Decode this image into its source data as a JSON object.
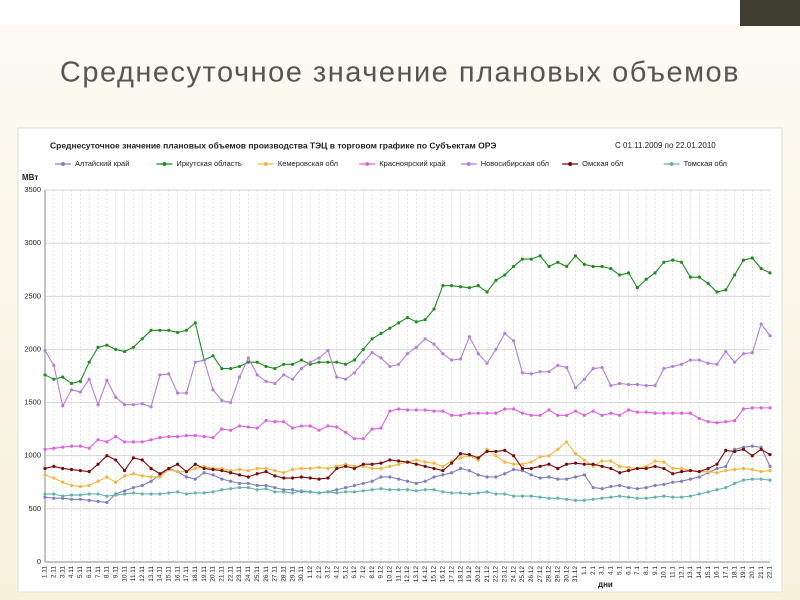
{
  "slide_title": "Среднесуточное значение плановых объемов",
  "chart_data": {
    "type": "line",
    "title": "Среднесуточное значение плановых объемов производства ТЭЦ в торговом графике по Субъектам ОРЭ",
    "subtitle": "С 01.11.2009 по 22.01.2010",
    "y_label": "МВт",
    "x_label": "дни",
    "ylim": [
      0,
      3500
    ],
    "yticks": [
      0,
      500,
      1000,
      1500,
      2000,
      2500,
      3000,
      3500
    ],
    "grid": true,
    "legend": "top",
    "categories": [
      "1.11",
      "2.11",
      "3.11",
      "4.11",
      "5.11",
      "6.11",
      "7.11",
      "8.11",
      "9.11",
      "10.11",
      "11.11",
      "12.11",
      "13.11",
      "14.11",
      "15.11",
      "16.11",
      "17.11",
      "18.11",
      "19.11",
      "20.11",
      "21.11",
      "22.11",
      "23.11",
      "24.11",
      "25.11",
      "26.11",
      "27.11",
      "28.11",
      "29.11",
      "30.11",
      "1.12",
      "2.12",
      "3.12",
      "4.12",
      "5.12",
      "6.12",
      "7.12",
      "8.12",
      "9.12",
      "10.12",
      "11.12",
      "12.12",
      "13.12",
      "14.12",
      "15.12",
      "16.12",
      "17.12",
      "18.12",
      "19.12",
      "20.12",
      "21.12",
      "22.12",
      "23.12",
      "24.12",
      "25.12",
      "26.12",
      "27.12",
      "28.12",
      "29.12",
      "30.12",
      "31.12",
      "1.1",
      "2.1",
      "3.1",
      "4.1",
      "5.1",
      "6.1",
      "7.1",
      "8.1",
      "9.1",
      "10.1",
      "11.1",
      "12.1",
      "13.1",
      "14.1",
      "15.1",
      "16.1",
      "17.1",
      "18.1",
      "19.1",
      "20.1",
      "21.1",
      "22.1"
    ],
    "series": [
      {
        "name": "Алтайский край",
        "color": "#7f7fc4",
        "values": [
          610,
          600,
          600,
          590,
          590,
          580,
          570,
          560,
          640,
          670,
          700,
          720,
          760,
          820,
          880,
          850,
          800,
          780,
          840,
          820,
          780,
          760,
          740,
          740,
          720,
          720,
          700,
          680,
          680,
          660,
          660,
          650,
          660,
          680,
          700,
          720,
          740,
          760,
          800,
          800,
          780,
          760,
          740,
          760,
          800,
          820,
          840,
          880,
          860,
          820,
          800,
          800,
          830,
          870,
          860,
          820,
          790,
          800,
          780,
          780,
          800,
          820,
          700,
          690,
          710,
          720,
          700,
          690,
          700,
          720,
          730,
          750,
          760,
          780,
          800,
          840,
          880,
          900,
          1060,
          1080,
          1090,
          1080,
          900
        ]
      },
      {
        "name": "Иркутская область",
        "color": "#1e8c1e",
        "values": [
          1760,
          1720,
          1740,
          1680,
          1700,
          1880,
          2020,
          2040,
          2000,
          1980,
          2020,
          2100,
          2180,
          2180,
          2180,
          2160,
          2180,
          2250,
          1900,
          1940,
          1820,
          1820,
          1840,
          1880,
          1880,
          1840,
          1820,
          1860,
          1860,
          1900,
          1860,
          1880,
          1880,
          1880,
          1860,
          1900,
          2000,
          2100,
          2150,
          2200,
          2250,
          2300,
          2260,
          2280,
          2380,
          2600,
          2600,
          2590,
          2580,
          2600,
          2540,
          2650,
          2700,
          2780,
          2850,
          2850,
          2880,
          2780,
          2820,
          2780,
          2880,
          2800,
          2780,
          2780,
          2760,
          2700,
          2720,
          2580,
          2660,
          2720,
          2820,
          2840,
          2820,
          2680,
          2680,
          2620,
          2540,
          2560,
          2700,
          2840,
          2860,
          2760,
          2720
        ]
      },
      {
        "name": "Кемеровская обл",
        "color": "#f2b640",
        "values": [
          820,
          790,
          750,
          720,
          710,
          720,
          760,
          800,
          750,
          810,
          830,
          810,
          800,
          800,
          870,
          850,
          850,
          880,
          900,
          880,
          880,
          860,
          870,
          860,
          880,
          880,
          860,
          840,
          870,
          880,
          880,
          890,
          880,
          900,
          920,
          900,
          900,
          880,
          880,
          900,
          920,
          940,
          960,
          940,
          930,
          900,
          950,
          980,
          1000,
          960,
          1060,
          1000,
          940,
          920,
          920,
          940,
          990,
          1000,
          1060,
          1130,
          1020,
          960,
          900,
          950,
          950,
          900,
          890,
          880,
          900,
          950,
          940,
          880,
          880,
          860,
          850,
          850,
          840,
          860,
          870,
          880,
          870,
          850,
          860
        ]
      },
      {
        "name": "Красноярский край",
        "color": "#e060e0",
        "values": [
          1060,
          1070,
          1080,
          1090,
          1090,
          1070,
          1150,
          1130,
          1180,
          1130,
          1130,
          1130,
          1150,
          1170,
          1180,
          1180,
          1190,
          1190,
          1180,
          1170,
          1250,
          1240,
          1280,
          1270,
          1260,
          1330,
          1320,
          1320,
          1260,
          1280,
          1280,
          1240,
          1280,
          1270,
          1220,
          1160,
          1160,
          1250,
          1260,
          1420,
          1440,
          1430,
          1430,
          1430,
          1420,
          1420,
          1380,
          1380,
          1400,
          1400,
          1400,
          1400,
          1440,
          1440,
          1400,
          1380,
          1380,
          1430,
          1380,
          1380,
          1420,
          1380,
          1420,
          1380,
          1400,
          1380,
          1430,
          1410,
          1410,
          1400,
          1400,
          1400,
          1400,
          1400,
          1350,
          1320,
          1310,
          1320,
          1330,
          1440,
          1450,
          1450,
          1450
        ]
      },
      {
        "name": "Новосибирская обл",
        "color": "#b57fd8",
        "values": [
          1990,
          1850,
          1470,
          1620,
          1600,
          1720,
          1480,
          1710,
          1550,
          1480,
          1480,
          1490,
          1460,
          1760,
          1770,
          1590,
          1590,
          1880,
          1900,
          1620,
          1520,
          1500,
          1740,
          1920,
          1760,
          1700,
          1680,
          1760,
          1720,
          1820,
          1880,
          1920,
          1990,
          1740,
          1720,
          1780,
          1880,
          1970,
          1920,
          1840,
          1860,
          1960,
          2020,
          2100,
          2050,
          1960,
          1900,
          1910,
          2120,
          1960,
          1870,
          2000,
          2150,
          2080,
          1780,
          1770,
          1790,
          1790,
          1850,
          1830,
          1640,
          1720,
          1820,
          1830,
          1660,
          1680,
          1670,
          1670,
          1660,
          1660,
          1820,
          1840,
          1860,
          1900,
          1900,
          1870,
          1860,
          1980,
          1880,
          1960,
          1970,
          2240,
          2130
        ]
      },
      {
        "name": "Омская обл",
        "color": "#7a0a0a",
        "values": [
          880,
          900,
          880,
          870,
          860,
          850,
          920,
          1000,
          960,
          860,
          980,
          960,
          880,
          830,
          880,
          920,
          850,
          920,
          880,
          870,
          860,
          840,
          820,
          800,
          830,
          850,
          810,
          790,
          790,
          800,
          790,
          780,
          790,
          880,
          900,
          880,
          920,
          920,
          930,
          960,
          950,
          940,
          920,
          900,
          880,
          860,
          930,
          1020,
          1010,
          980,
          1040,
          1040,
          1050,
          1000,
          880,
          880,
          900,
          920,
          880,
          920,
          930,
          920,
          920,
          900,
          880,
          840,
          860,
          880,
          880,
          900,
          880,
          830,
          850,
          860,
          850,
          880,
          920,
          1050,
          1040,
          1060,
          1000,
          1060,
          1010
        ]
      },
      {
        "name": "Томская обл",
        "color": "#66b3b0",
        "values": [
          640,
          640,
          620,
          630,
          630,
          640,
          640,
          620,
          630,
          640,
          650,
          640,
          640,
          640,
          650,
          660,
          640,
          650,
          650,
          660,
          680,
          690,
          700,
          700,
          680,
          690,
          660,
          660,
          650,
          670,
          660,
          650,
          660,
          650,
          660,
          660,
          670,
          680,
          690,
          680,
          680,
          680,
          670,
          680,
          680,
          660,
          650,
          650,
          640,
          650,
          660,
          640,
          640,
          620,
          620,
          620,
          610,
          600,
          600,
          590,
          580,
          580,
          590,
          600,
          610,
          620,
          610,
          600,
          600,
          610,
          620,
          610,
          610,
          620,
          640,
          660,
          680,
          700,
          740,
          770,
          780,
          780,
          770
        ]
      }
    ]
  }
}
